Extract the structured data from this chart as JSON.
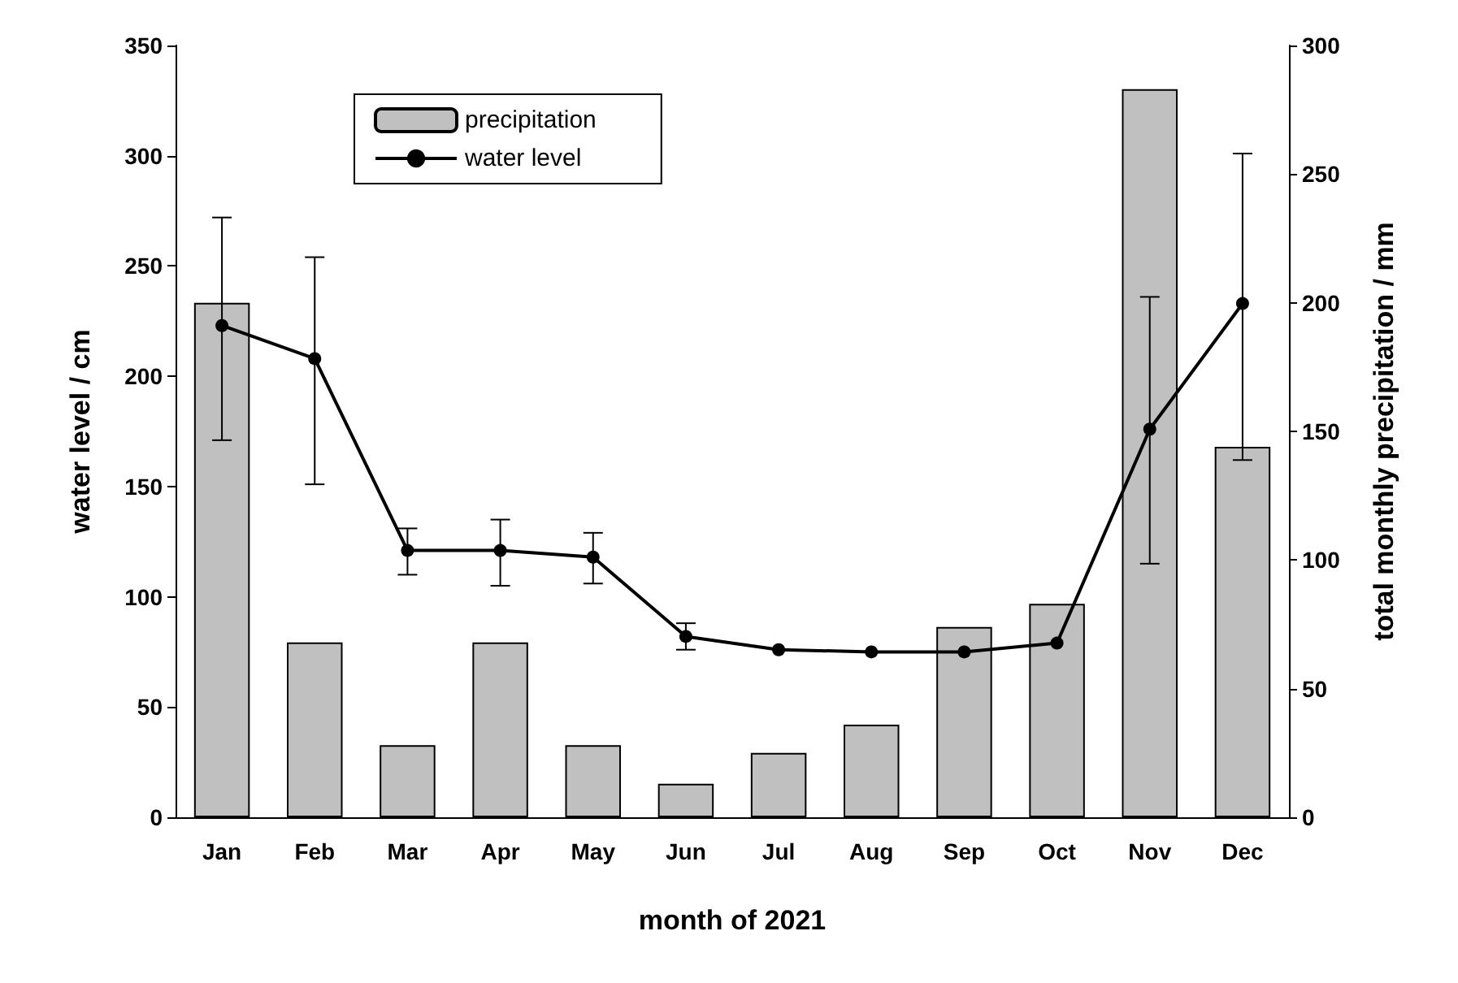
{
  "chart_data": {
    "type": "bar",
    "xlabel": "month of 2021",
    "ylabel": "water level / cm",
    "y2label": "total monthly precipitation / mm",
    "categories": [
      "Jan",
      "Feb",
      "Mar",
      "Apr",
      "May",
      "Jun",
      "Jul",
      "Aug",
      "Sep",
      "Oct",
      "Nov",
      "Dec"
    ],
    "series": [
      {
        "name": "precipitation",
        "axis": "y2",
        "color": "#c0c0c0",
        "values": [
          200,
          68,
          28,
          68,
          28,
          13,
          25,
          36,
          74,
          83,
          283,
          144
        ]
      },
      {
        "name": "water level",
        "type": "line",
        "axis": "y",
        "color": "#000000",
        "marker": "circle",
        "line_style": "solid",
        "values": [
          223,
          208,
          121,
          121,
          118,
          82,
          76,
          75,
          75,
          79,
          176,
          233
        ],
        "errors": [
          [
            171,
            272
          ],
          [
            151,
            254
          ],
          [
            110,
            131
          ],
          [
            105,
            135
          ],
          [
            106,
            129
          ],
          [
            76,
            88
          ],
          null,
          null,
          null,
          null,
          [
            115,
            236
          ],
          [
            162,
            301
          ]
        ]
      }
    ],
    "ylim": [
      0,
      350
    ],
    "yticks": [
      0,
      50,
      100,
      150,
      200,
      250,
      300,
      350
    ],
    "y2lim": [
      0,
      300
    ],
    "y2ticks": [
      0,
      50,
      100,
      150,
      200,
      250,
      300
    ],
    "grid": false,
    "legend": "top left"
  }
}
